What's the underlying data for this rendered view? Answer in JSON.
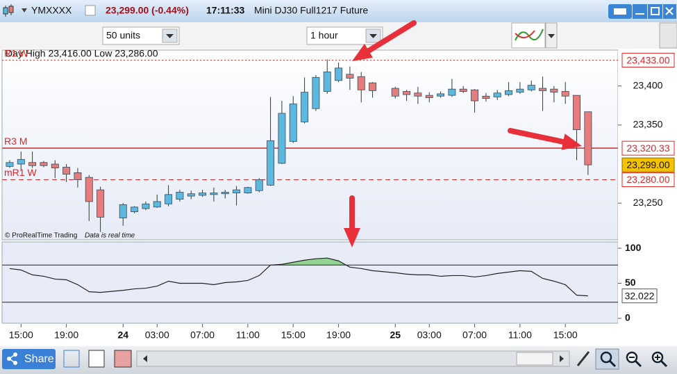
{
  "header": {
    "symbol": "YMXXXX",
    "price_change": "23,299.00 (-0.44%)",
    "time": "17:11:33",
    "description": "Mini DJ30 Full1217 Future"
  },
  "toolbar": {
    "units": "50 units",
    "period": "1 hour"
  },
  "footer": {
    "share": "Share"
  },
  "chart_data": {
    "type": "candlestick",
    "info": "Day High 23,416.00 Low 23,286.00",
    "copyright": "© ProRealTime Trading",
    "status": "Data is real time",
    "x": [
      0,
      1,
      2,
      3,
      4,
      5,
      6,
      7,
      8,
      10,
      11,
      12,
      13,
      14,
      15,
      16,
      17,
      18,
      19,
      20,
      21,
      22,
      23,
      24,
      25,
      26,
      27,
      28,
      29,
      30,
      31,
      32,
      34,
      35,
      36,
      37,
      38,
      39,
      40,
      41,
      42,
      43,
      44,
      45,
      46,
      47,
      48,
      49,
      50,
      51
    ],
    "open": [
      23297,
      23300,
      23302,
      23302,
      23300,
      23296,
      23289,
      23283,
      23267,
      23231,
      23239,
      23243,
      23245,
      23249,
      23255,
      23259,
      23260,
      23261,
      23262,
      23263,
      23263,
      23266,
      23273,
      23301,
      23329,
      23354,
      23371,
      23393,
      23407,
      23415,
      23412,
      23404,
      23397,
      23393,
      23391,
      23388,
      23387,
      23388,
      23396,
      23395,
      23387,
      23386,
      23389,
      23392,
      23395,
      23397,
      23396,
      23393,
      23388,
      23367
    ],
    "high": [
      23305,
      23316,
      23316,
      23304,
      23305,
      23300,
      23295,
      23286,
      23271,
      23250,
      23246,
      23252,
      23261,
      23273,
      23267,
      23266,
      23267,
      23270,
      23267,
      23272,
      23271,
      23282,
      23386,
      23381,
      23387,
      23411,
      23414,
      23434,
      23430,
      23425,
      23418,
      23405,
      23399,
      23395,
      23399,
      23392,
      23393,
      23409,
      23400,
      23396,
      23391,
      23395,
      23405,
      23405,
      23407,
      23412,
      23400,
      23405,
      23388,
      23367
    ],
    "low": [
      23295,
      23293,
      23295,
      23296,
      23282,
      23277,
      23270,
      23227,
      23213,
      23221,
      23237,
      23241,
      23244,
      23246,
      23252,
      23255,
      23258,
      23252,
      23256,
      23247,
      23262,
      23264,
      23272,
      23300,
      23327,
      23352,
      23368,
      23390,
      23405,
      23395,
      23379,
      23385,
      23384,
      23381,
      23377,
      23379,
      23385,
      23386,
      23391,
      23366,
      23380,
      23382,
      23387,
      23390,
      23393,
      23368,
      23379,
      23377,
      23305,
      23286
    ],
    "close": [
      23302,
      23306,
      23298,
      23298,
      23295,
      23287,
      23280,
      23252,
      23232,
      23248,
      23245,
      23249,
      23252,
      23261,
      23264,
      23262,
      23263,
      23263,
      23264,
      23267,
      23270,
      23280,
      23330,
      23365,
      23377,
      23392,
      23411,
      23418,
      23423,
      23410,
      23395,
      23394,
      23387,
      23389,
      23387,
      23385,
      23390,
      23396,
      23393,
      23381,
      23384,
      23391,
      23394,
      23396,
      23401,
      23394,
      23392,
      23387,
      23344,
      23299
    ],
    "up_color": "#5cb8de",
    "down_color": "#e47d7d",
    "xlim": [
      -0.67,
      53.64
    ],
    "xticks": [
      {
        "value": 1,
        "label": "15:00"
      },
      {
        "value": 5,
        "label": "19:00"
      },
      {
        "value": 10,
        "label": "24"
      },
      {
        "value": 13,
        "label": "03:00"
      },
      {
        "value": 17,
        "label": "07:00"
      },
      {
        "value": 21,
        "label": "11:00"
      },
      {
        "value": 25,
        "label": "15:00"
      },
      {
        "value": 29,
        "label": "19:00"
      },
      {
        "value": 34,
        "label": "25"
      },
      {
        "value": 37,
        "label": "03:00"
      },
      {
        "value": 41,
        "label": "07:00"
      },
      {
        "value": 45,
        "label": "11:00"
      },
      {
        "value": 49,
        "label": "15:00"
      }
    ],
    "ylim": [
      23203,
      23446
    ],
    "yticks": [
      {
        "value": 23250,
        "label": "23,250"
      },
      {
        "value": 23350,
        "label": "23,350"
      },
      {
        "value": 23400,
        "label": "23,400"
      }
    ],
    "levels": {
      "names": [
        "R1 W",
        "R3 M",
        "mR1 W"
      ],
      "values": [
        23433,
        23320.33,
        23280
      ],
      "value_labels": [
        "23,433.00",
        "23,320.33",
        "23,280.00"
      ],
      "styles": [
        "dotted",
        "solid",
        "dashed"
      ],
      "color": "#e02424"
    },
    "last": {
      "value": 23299,
      "label": "23,299.00",
      "color": "#f3c200"
    },
    "indicator": {
      "type": "line",
      "values": [
        71,
        69,
        62,
        60,
        56,
        55,
        48,
        38,
        37,
        40,
        42,
        43,
        46,
        53,
        50,
        50,
        50,
        48,
        51,
        52,
        54,
        61,
        76,
        77,
        80,
        83,
        85,
        86,
        82,
        73,
        71,
        68,
        65,
        63,
        62,
        62,
        60,
        61,
        61,
        59,
        61,
        64,
        66,
        68,
        67,
        57,
        53,
        48,
        33,
        32.022
      ],
      "color": "#222222",
      "fill_color": "#93d493",
      "bands": [
        76,
        23
      ],
      "ylim": [
        -7,
        109
      ],
      "yticks": [
        0,
        50,
        100
      ]
    }
  }
}
